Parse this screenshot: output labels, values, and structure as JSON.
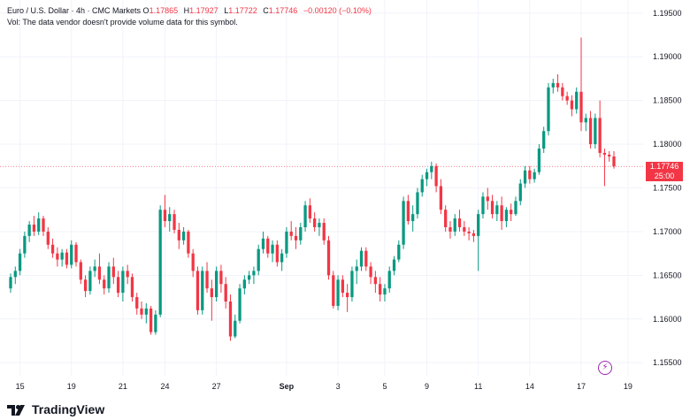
{
  "legend": {
    "symbol": "Euro / U.S. Dollar · 4h · CMC Markets",
    "o_label": "O",
    "o_value": "1.17865",
    "h_label": "H",
    "h_value": "1.17927",
    "l_label": "L",
    "l_value": "1.17722",
    "c_label": "C",
    "c_value": "1.17746",
    "change": "−0.00120 (−0.10%)",
    "volume_note": "Vol: The data vendor doesn't provide volume data for this symbol."
  },
  "price_tag": {
    "price": "1.17746",
    "countdown": "25:00"
  },
  "brand": {
    "name": "TradingView"
  },
  "flash_icon": "lightning-icon",
  "colors": {
    "up": "#089981",
    "down": "#f23645",
    "grid": "#f0f3fa",
    "text": "#131722"
  },
  "chart_data": {
    "type": "candlestick",
    "title": "Euro / U.S. Dollar · 4h · CMC Markets",
    "ylim": [
      1.1535,
      1.1965
    ],
    "y_ticks": [
      "1.15500",
      "1.16000",
      "1.16500",
      "1.17000",
      "1.17500",
      "1.18000",
      "1.18500",
      "1.19000",
      "1.19500"
    ],
    "y_tick_values": [
      1.155,
      1.16,
      1.165,
      1.17,
      1.175,
      1.18,
      1.185,
      1.19,
      1.195
    ],
    "x_tick_labels": [
      "15",
      "19",
      "21",
      "24",
      "27",
      "Sep",
      "3",
      "5",
      "9",
      "11",
      "14",
      "17",
      "19"
    ],
    "x_tick_bar_index": [
      2,
      13,
      24,
      33,
      44,
      59,
      70,
      80,
      89,
      100,
      111,
      122,
      132
    ],
    "last_price": 1.17746,
    "candles": [
      [
        1.1635,
        1.1652,
        1.163,
        1.1648
      ],
      [
        1.1648,
        1.166,
        1.164,
        1.1655
      ],
      [
        1.1655,
        1.168,
        1.165,
        1.1675
      ],
      [
        1.1675,
        1.17,
        1.167,
        1.1695
      ],
      [
        1.1695,
        1.1712,
        1.1688,
        1.1708
      ],
      [
        1.1708,
        1.1718,
        1.1695,
        1.17
      ],
      [
        1.17,
        1.1722,
        1.1696,
        1.1715
      ],
      [
        1.1715,
        1.1718,
        1.1695,
        1.17
      ],
      [
        1.17,
        1.1705,
        1.168,
        1.1685
      ],
      [
        1.1685,
        1.1692,
        1.167,
        1.1675
      ],
      [
        1.1675,
        1.1682,
        1.166,
        1.1668
      ],
      [
        1.1668,
        1.168,
        1.166,
        1.1676
      ],
      [
        1.1676,
        1.168,
        1.1658,
        1.1662
      ],
      [
        1.1662,
        1.169,
        1.1658,
        1.1685
      ],
      [
        1.1685,
        1.1688,
        1.166,
        1.1665
      ],
      [
        1.1665,
        1.1668,
        1.164,
        1.1645
      ],
      [
        1.1645,
        1.165,
        1.1625,
        1.1632
      ],
      [
        1.1632,
        1.166,
        1.1628,
        1.1655
      ],
      [
        1.1655,
        1.1668,
        1.1648,
        1.166
      ],
      [
        1.166,
        1.1675,
        1.164,
        1.1645
      ],
      [
        1.1645,
        1.165,
        1.1628,
        1.1635
      ],
      [
        1.1635,
        1.1665,
        1.163,
        1.166
      ],
      [
        1.166,
        1.167,
        1.164,
        1.1648
      ],
      [
        1.1648,
        1.1655,
        1.1625,
        1.163
      ],
      [
        1.163,
        1.166,
        1.162,
        1.1655
      ],
      [
        1.1655,
        1.1662,
        1.164,
        1.1648
      ],
      [
        1.1648,
        1.1652,
        1.162,
        1.1625
      ],
      [
        1.1625,
        1.163,
        1.1605,
        1.1612
      ],
      [
        1.1612,
        1.162,
        1.16,
        1.1605
      ],
      [
        1.1605,
        1.1618,
        1.1595,
        1.1612
      ],
      [
        1.1612,
        1.1615,
        1.1582,
        1.1585
      ],
      [
        1.1585,
        1.161,
        1.1582,
        1.1605
      ],
      [
        1.1605,
        1.173,
        1.1602,
        1.1725
      ],
      [
        1.1725,
        1.1742,
        1.1705,
        1.1712
      ],
      [
        1.1712,
        1.1728,
        1.17,
        1.172
      ],
      [
        1.172,
        1.1725,
        1.1698,
        1.1702
      ],
      [
        1.1702,
        1.171,
        1.168,
        1.169
      ],
      [
        1.169,
        1.1705,
        1.1685,
        1.17
      ],
      [
        1.17,
        1.1702,
        1.167,
        1.1675
      ],
      [
        1.1675,
        1.168,
        1.1648,
        1.1655
      ],
      [
        1.1655,
        1.166,
        1.1605,
        1.161
      ],
      [
        1.161,
        1.166,
        1.1605,
        1.1655
      ],
      [
        1.1655,
        1.1665,
        1.163,
        1.1635
      ],
      [
        1.1635,
        1.1645,
        1.1598,
        1.1625
      ],
      [
        1.1625,
        1.166,
        1.162,
        1.1655
      ],
      [
        1.1655,
        1.1662,
        1.163,
        1.164
      ],
      [
        1.164,
        1.1648,
        1.1612,
        1.162
      ],
      [
        1.162,
        1.1628,
        1.1575,
        1.158
      ],
      [
        1.158,
        1.1605,
        1.1578,
        1.1598
      ],
      [
        1.1598,
        1.164,
        1.1595,
        1.1635
      ],
      [
        1.1635,
        1.165,
        1.1628,
        1.1645
      ],
      [
        1.1645,
        1.1655,
        1.164,
        1.165
      ],
      [
        1.165,
        1.166,
        1.164,
        1.1655
      ],
      [
        1.1655,
        1.1685,
        1.165,
        1.168
      ],
      [
        1.168,
        1.17,
        1.1675,
        1.1692
      ],
      [
        1.1692,
        1.1695,
        1.167,
        1.1675
      ],
      [
        1.1675,
        1.169,
        1.1665,
        1.1685
      ],
      [
        1.1685,
        1.169,
        1.166,
        1.1665
      ],
      [
        1.1665,
        1.168,
        1.1655,
        1.1675
      ],
      [
        1.1675,
        1.1705,
        1.167,
        1.17
      ],
      [
        1.17,
        1.1712,
        1.169,
        1.1695
      ],
      [
        1.1695,
        1.1705,
        1.168,
        1.169
      ],
      [
        1.169,
        1.171,
        1.1685,
        1.1705
      ],
      [
        1.1705,
        1.1735,
        1.17,
        1.173
      ],
      [
        1.173,
        1.1738,
        1.171,
        1.1715
      ],
      [
        1.1715,
        1.1722,
        1.17,
        1.1705
      ],
      [
        1.1705,
        1.1715,
        1.1695,
        1.171
      ],
      [
        1.171,
        1.1715,
        1.1685,
        1.169
      ],
      [
        1.169,
        1.1695,
        1.1645,
        1.165
      ],
      [
        1.165,
        1.1655,
        1.1612,
        1.1615
      ],
      [
        1.1615,
        1.165,
        1.161,
        1.1645
      ],
      [
        1.1645,
        1.165,
        1.1625,
        1.163
      ],
      [
        1.163,
        1.164,
        1.1608,
        1.1625
      ],
      [
        1.1625,
        1.166,
        1.162,
        1.1655
      ],
      [
        1.1655,
        1.1668,
        1.164,
        1.166
      ],
      [
        1.166,
        1.1682,
        1.1655,
        1.1678
      ],
      [
        1.1678,
        1.1682,
        1.1655,
        1.166
      ],
      [
        1.166,
        1.1665,
        1.164,
        1.1648
      ],
      [
        1.1648,
        1.1655,
        1.163,
        1.164
      ],
      [
        1.164,
        1.1648,
        1.162,
        1.1628
      ],
      [
        1.1628,
        1.164,
        1.162,
        1.1635
      ],
      [
        1.1635,
        1.166,
        1.163,
        1.1655
      ],
      [
        1.1655,
        1.1672,
        1.165,
        1.1668
      ],
      [
        1.1668,
        1.169,
        1.1665,
        1.1685
      ],
      [
        1.1685,
        1.174,
        1.168,
        1.1735
      ],
      [
        1.1735,
        1.1742,
        1.1708,
        1.1712
      ],
      [
        1.1712,
        1.173,
        1.17,
        1.172
      ],
      [
        1.172,
        1.175,
        1.1715,
        1.1745
      ],
      [
        1.1745,
        1.1765,
        1.174,
        1.176
      ],
      [
        1.176,
        1.1772,
        1.1752,
        1.1768
      ],
      [
        1.1768,
        1.178,
        1.176,
        1.1775
      ],
      [
        1.1775,
        1.1778,
        1.1745,
        1.1752
      ],
      [
        1.1752,
        1.176,
        1.172,
        1.1725
      ],
      [
        1.1725,
        1.173,
        1.17,
        1.1705
      ],
      [
        1.1705,
        1.1712,
        1.1692,
        1.17
      ],
      [
        1.17,
        1.172,
        1.1695,
        1.1715
      ],
      [
        1.1715,
        1.1725,
        1.17,
        1.1705
      ],
      [
        1.1705,
        1.1712,
        1.1695,
        1.17
      ],
      [
        1.17,
        1.1705,
        1.169,
        1.1698
      ],
      [
        1.1698,
        1.1702,
        1.1688,
        1.1695
      ],
      [
        1.1695,
        1.1725,
        1.1655,
        1.172
      ],
      [
        1.172,
        1.1745,
        1.1715,
        1.174
      ],
      [
        1.174,
        1.175,
        1.1725,
        1.1735
      ],
      [
        1.1735,
        1.1742,
        1.1715,
        1.172
      ],
      [
        1.172,
        1.1735,
        1.1712,
        1.173
      ],
      [
        1.173,
        1.174,
        1.1702,
        1.1712
      ],
      [
        1.1712,
        1.1728,
        1.1705,
        1.1725
      ],
      [
        1.1725,
        1.1732,
        1.1712,
        1.172
      ],
      [
        1.172,
        1.174,
        1.1718,
        1.1735
      ],
      [
        1.1735,
        1.176,
        1.173,
        1.1755
      ],
      [
        1.1755,
        1.1775,
        1.175,
        1.177
      ],
      [
        1.177,
        1.1775,
        1.1755,
        1.176
      ],
      [
        1.176,
        1.1772,
        1.1756,
        1.1768
      ],
      [
        1.1768,
        1.18,
        1.1765,
        1.1795
      ],
      [
        1.1795,
        1.182,
        1.179,
        1.1815
      ],
      [
        1.1815,
        1.187,
        1.181,
        1.1865
      ],
      [
        1.1865,
        1.1875,
        1.1858,
        1.187
      ],
      [
        1.187,
        1.188,
        1.186,
        1.1865
      ],
      [
        1.1865,
        1.187,
        1.185,
        1.1855
      ],
      [
        1.1855,
        1.186,
        1.1845,
        1.185
      ],
      [
        1.185,
        1.1856,
        1.1832,
        1.184
      ],
      [
        1.184,
        1.1865,
        1.1835,
        1.186
      ],
      [
        1.186,
        1.1922,
        1.1815,
        1.1825
      ],
      [
        1.1825,
        1.1835,
        1.1815,
        1.183
      ],
      [
        1.183,
        1.1838,
        1.1795,
        1.18
      ],
      [
        1.18,
        1.1835,
        1.1795,
        1.183
      ],
      [
        1.183,
        1.185,
        1.1785,
        1.179
      ],
      [
        1.179,
        1.1795,
        1.1752,
        1.1788
      ],
      [
        1.1788,
        1.1792,
        1.178,
        1.1786
      ],
      [
        1.1786,
        1.1792,
        1.1772,
        1.17746
      ]
    ]
  }
}
